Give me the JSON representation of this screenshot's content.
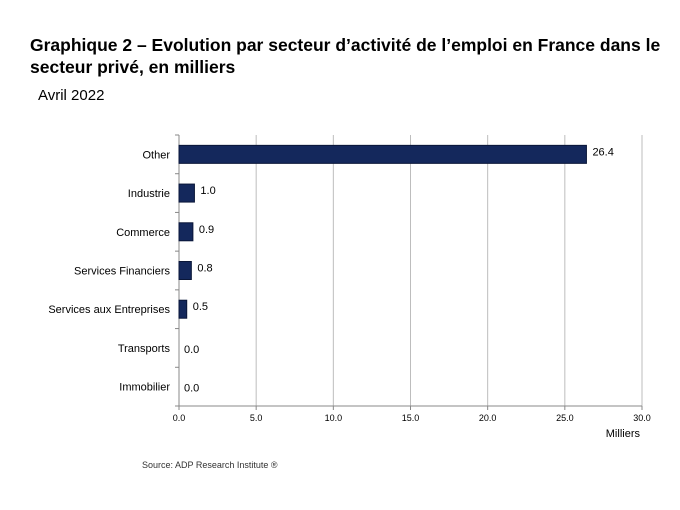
{
  "title": "Graphique 2 – Evolution par secteur d’activité de l’emploi en France dans le secteur privé, en milliers",
  "subtitle": "Avril 2022",
  "source": "Source: ADP Research Institute ®",
  "chart_data": {
    "type": "bar",
    "orientation": "horizontal",
    "categories": [
      "Other",
      "Industrie",
      "Commerce",
      "Services Financiers",
      "Services aux Entreprises",
      "Transports",
      "Immobilier"
    ],
    "values": [
      26.4,
      1.0,
      0.9,
      0.8,
      0.5,
      0.0,
      0.0
    ],
    "value_labels": [
      "26.4",
      "1.0",
      "0.9",
      "0.8",
      "0.5",
      "0.0",
      "0.0"
    ],
    "xlim": [
      0,
      30
    ],
    "xticks": [
      "0.0",
      "5.0",
      "10.0",
      "15.0",
      "20.0",
      "25.0",
      "30.0"
    ],
    "xlabel": "Milliers",
    "grid": true,
    "bar_color": "#14285c"
  }
}
